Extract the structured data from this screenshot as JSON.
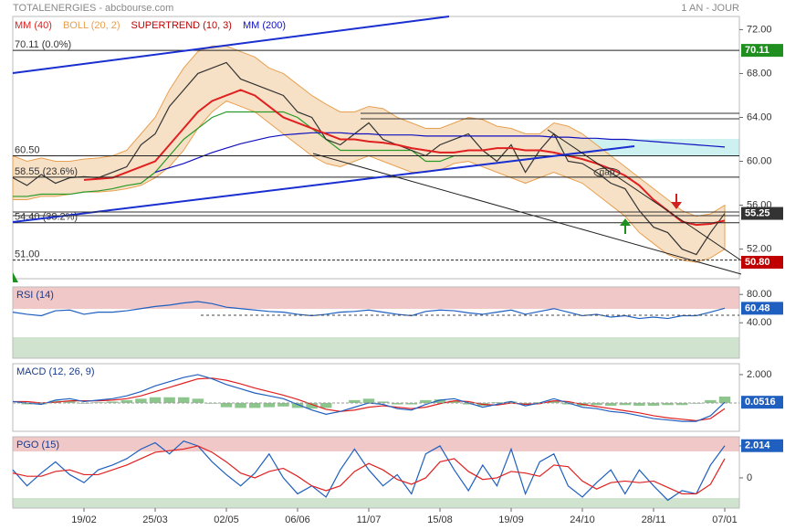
{
  "chart_data": [
    {
      "type": "line",
      "title": "TOTALENERGIES - abcbourse.com",
      "subtitle": "1 AN - JOUR",
      "ylim": [
        49.3,
        73.2
      ],
      "yticks": [
        {
          "value": 52,
          "label": "52.00"
        },
        {
          "value": 56,
          "label": "56.00"
        },
        {
          "value": 60,
          "label": "60.00"
        },
        {
          "value": 64,
          "label": "64.00"
        },
        {
          "value": 68,
          "label": "68.00"
        },
        {
          "value": 72,
          "label": "72.00"
        }
      ],
      "series": [
        {
          "name": "BOLL (20, 2)",
          "color": "#e8a050",
          "values": [
            60.5,
            60,
            60.3,
            60,
            60,
            60.2,
            60.3,
            60.5,
            61,
            62.5,
            64,
            66.5,
            68.5,
            70,
            70.5,
            70.5,
            70,
            69.5,
            68.5,
            68,
            67,
            66,
            65.2,
            64.5,
            64.5,
            65,
            64.8,
            64,
            63.5,
            63,
            63,
            63.5,
            64,
            63.8,
            63.2,
            63,
            62.5,
            62.5,
            63.5,
            63.2,
            62.5,
            61.5,
            60.5,
            59.5,
            58.5,
            57.5,
            56.5,
            55.5,
            55,
            55.2,
            56
          ],
          "lower": [
            56.5,
            56.5,
            56.8,
            56.8,
            57,
            57.2,
            57.2,
            57.3,
            57.5,
            57.8,
            58.5,
            59.5,
            61,
            63,
            64.5,
            65.5,
            65,
            64.5,
            63.5,
            62.5,
            61.5,
            60.5,
            59.8,
            59.5,
            60,
            60.5,
            60,
            59.5,
            59,
            59,
            59.2,
            59.8,
            60,
            59.5,
            59,
            58.5,
            58,
            58.5,
            59,
            58.5,
            58,
            57,
            56,
            55,
            53.5,
            52.5,
            51.5,
            51,
            50.8,
            51.2,
            52
          ]
        },
        {
          "name": "SUPERTREND (10, 3)",
          "color": "#c00000",
          "line_color": "#2a9a2a",
          "values": [
            56.8,
            56.8,
            57,
            57,
            57,
            57.2,
            57.3,
            57.5,
            57.8,
            58,
            59,
            60.5,
            62,
            63,
            64,
            64.5,
            64.5,
            64.5,
            64.5,
            64.5,
            64,
            63,
            62,
            61,
            61,
            61,
            61,
            61,
            61,
            60,
            60,
            60.5,
            60.5,
            60.5,
            60.5,
            60.5,
            60.5,
            60.5,
            null,
            null,
            null,
            null,
            null,
            null,
            null,
            null,
            null,
            null,
            null,
            null,
            null
          ]
        },
        {
          "color": "#333333",
          "values": [
            58.5,
            57.8,
            58.8,
            58,
            58.5,
            58.6,
            58.5,
            59,
            59.5,
            61.5,
            62.5,
            65,
            66.5,
            68,
            68.5,
            69,
            67.5,
            67,
            66.5,
            66,
            64.5,
            64,
            62,
            61.5,
            62.5,
            63.5,
            62,
            61.5,
            61,
            60.5,
            61.5,
            62,
            62.5,
            61,
            60,
            61.5,
            59,
            61,
            62.5,
            60,
            59.8,
            59,
            58,
            57.5,
            55.5,
            54,
            53.5,
            52,
            51.5,
            53.5,
            55.25
          ]
        },
        {
          "name": "MM (200)",
          "color": "#1010c0",
          "values": [
            null,
            null,
            null,
            null,
            null,
            null,
            null,
            null,
            null,
            null,
            59,
            59.4,
            59.8,
            60.3,
            60.8,
            61.2,
            61.6,
            61.9,
            62.2,
            62.4,
            62.5,
            62.6,
            62.6,
            62.6,
            62.5,
            62.5,
            62.4,
            62.4,
            62.4,
            62.3,
            62.3,
            62.3,
            62.3,
            62.3,
            62.3,
            62.3,
            62.3,
            62.3,
            62.2,
            62.2,
            62.1,
            62.1,
            62,
            62,
            61.9,
            61.8,
            61.7,
            61.6,
            61.5,
            61.4,
            61.3
          ]
        },
        {
          "name": "MM (40)",
          "color": "#e02020",
          "values": [
            null,
            null,
            null,
            null,
            null,
            58.3,
            58.4,
            58.5,
            59,
            59.5,
            60,
            61.5,
            63,
            64.5,
            65.5,
            66,
            66.5,
            66,
            65,
            64,
            63.5,
            63,
            62.5,
            62,
            62,
            61.8,
            61.7,
            61.5,
            61.2,
            61,
            60.8,
            60.8,
            61,
            61,
            61.2,
            61.2,
            61,
            61,
            60.8,
            60.5,
            60.2,
            59.8,
            59.3,
            58.7,
            57.8,
            56.5,
            55.5,
            54.5,
            54.2,
            54.3,
            54.6
          ]
        }
      ],
      "legend_order": [
        4,
        0,
        1,
        3
      ],
      "levels": [
        {
          "value": 70.11,
          "label": "70.11 (0.0%)"
        },
        {
          "value": 60.5,
          "label": "60.50"
        },
        {
          "value": 58.55,
          "label": "58.55 (23.6%)"
        },
        {
          "value": 54.4,
          "label": "54.40 (38.2%)"
        },
        {
          "value": 51.0,
          "label": "51.00"
        }
      ],
      "annotation": "gap",
      "tags": [
        {
          "value": 70.11,
          "label": "70.11",
          "color": "#1f8f1f"
        },
        {
          "value": 55.25,
          "label": "55.25",
          "color": "#333333"
        },
        {
          "value": 50.8,
          "label": "50.80",
          "color": "#c00000"
        }
      ]
    },
    {
      "type": "line",
      "title": "RSI (14)",
      "ylim": [
        -10,
        90.6
      ],
      "yticks": [
        {
          "value": 80,
          "label": "80.00"
        },
        {
          "value": 40,
          "label": "40.00"
        }
      ],
      "series": [
        {
          "color": "#1f5fbf",
          "values": [
            55,
            52,
            50,
            57,
            58,
            52,
            55,
            55,
            57,
            60,
            63,
            65,
            68,
            70,
            67,
            62,
            60,
            58,
            56,
            55,
            52,
            50,
            52,
            55,
            56,
            58,
            55,
            52,
            50,
            56,
            58,
            57,
            54,
            52,
            55,
            58,
            52,
            56,
            60,
            55,
            50,
            52,
            48,
            50,
            46,
            48,
            46,
            50,
            50,
            55,
            60.48
          ]
        }
      ],
      "tags": [
        {
          "value": 60.48,
          "label": "60.48",
          "color": "#1f5fbf"
        }
      ]
    },
    {
      "type": "line",
      "title": "MACD (12, 26, 9)",
      "ylim": [
        -2,
        2.77
      ],
      "yticks": [
        {
          "value": 2,
          "label": "2.000"
        }
      ],
      "series": [
        {
          "color": "#5cae5c",
          "style": "histogram",
          "values": [
            0,
            -0.1,
            -0.1,
            0.15,
            0.15,
            -0.05,
            0.05,
            0.1,
            0.2,
            0.3,
            0.4,
            0.4,
            0.4,
            0.3,
            -0.05,
            -0.3,
            -0.35,
            -0.35,
            -0.3,
            -0.25,
            -0.35,
            -0.4,
            -0.35,
            0,
            0.2,
            0.3,
            0.1,
            -0.1,
            -0.1,
            0.2,
            0.25,
            0.15,
            -0.1,
            -0.2,
            0.05,
            0.1,
            -0.1,
            0.05,
            0.15,
            -0.1,
            -0.2,
            -0.15,
            -0.2,
            -0.15,
            -0.2,
            -0.2,
            -0.15,
            -0.15,
            -0.05,
            0.2,
            0.45
          ]
        },
        {
          "color": "#e02020",
          "values": [
            0.1,
            0.1,
            0,
            0.05,
            0.15,
            0.15,
            0.15,
            0.2,
            0.3,
            0.5,
            0.8,
            1.1,
            1.4,
            1.7,
            1.75,
            1.6,
            1.35,
            1.05,
            0.8,
            0.55,
            0.25,
            -0.1,
            -0.45,
            -0.6,
            -0.5,
            -0.3,
            -0.2,
            -0.3,
            -0.4,
            -0.3,
            -0.05,
            0.15,
            0.1,
            -0.1,
            -0.15,
            0,
            -0.1,
            -0.05,
            0.15,
            0.1,
            -0.1,
            -0.25,
            -0.4,
            -0.55,
            -0.7,
            -0.9,
            -1.05,
            -1.15,
            -1.25,
            -1.1,
            -0.4
          ]
        },
        {
          "color": "#1f5fbf",
          "values": [
            0.1,
            0,
            -0.1,
            0.2,
            0.3,
            0.1,
            0.2,
            0.3,
            0.5,
            0.8,
            1.2,
            1.5,
            1.8,
            2,
            1.7,
            1.3,
            1,
            0.7,
            0.5,
            0.3,
            -0.1,
            -0.5,
            -0.8,
            -0.6,
            -0.3,
            0,
            -0.1,
            -0.4,
            -0.5,
            -0.1,
            0.2,
            0.3,
            0,
            -0.3,
            -0.1,
            0.1,
            -0.2,
            0,
            0.3,
            0,
            -0.3,
            -0.4,
            -0.6,
            -0.7,
            -0.9,
            -1.1,
            -1.2,
            -1.3,
            -1.3,
            -0.9,
            0.0516
          ]
        }
      ],
      "tags": [
        {
          "value": 0.0516,
          "label": "0.0516",
          "color": "#1f5fbf"
        }
      ]
    },
    {
      "type": "line",
      "title": "PGO (15)",
      "ylim": [
        -1.89,
        2.57
      ],
      "yticks": [
        {
          "value": 2,
          "label": "2.000"
        },
        0
      ],
      "series": [
        {
          "color": "#1f5fbf",
          "values": [
            0.5,
            -0.5,
            0.3,
            1,
            0.2,
            -0.3,
            0.5,
            0.8,
            1.2,
            1.8,
            2.2,
            1.5,
            2.3,
            2,
            1,
            0.2,
            -0.5,
            0.3,
            1.5,
            0,
            -1,
            -0.5,
            -1.2,
            0.5,
            1.8,
            0.5,
            -0.5,
            0.2,
            -1,
            1.5,
            2,
            0.5,
            -0.8,
            0.8,
            -0.5,
            1.8,
            -1,
            1,
            1.5,
            -0.5,
            -1.2,
            -0.3,
            0.5,
            -1,
            0.5,
            -0.5,
            -1.4,
            -0.8,
            -1,
            0.8,
            2.014
          ]
        },
        {
          "color": "#e02020",
          "values": [
            0.3,
            0.1,
            0.1,
            0.4,
            0.5,
            0.2,
            0.2,
            0.5,
            0.8,
            1.2,
            1.6,
            1.7,
            1.8,
            2,
            1.6,
            1,
            0.3,
            0,
            0.4,
            0.6,
            0.1,
            -0.5,
            -0.8,
            -0.5,
            0.4,
            0.9,
            0.5,
            -0.1,
            -0.4,
            0,
            1,
            1.2,
            0.4,
            -0.1,
            0,
            0.4,
            0.3,
            0.1,
            0.8,
            0.7,
            -0.2,
            -0.7,
            -0.3,
            -0.2,
            -0.3,
            -0.2,
            -0.6,
            -1,
            -1,
            -0.4,
            1.2
          ]
        }
      ],
      "tags": [
        {
          "value": 2.014,
          "label": "2.014",
          "color": "#1f5fbf"
        }
      ],
      "categories": [
        null,
        null,
        null,
        null,
        null,
        "19/02",
        null,
        null,
        null,
        null,
        "25/03",
        null,
        null,
        null,
        null,
        "02/05",
        null,
        null,
        null,
        null,
        "06/06",
        null,
        null,
        null,
        null,
        "11/07",
        null,
        null,
        null,
        null,
        "15/08",
        null,
        null,
        null,
        null,
        "19/09",
        null,
        null,
        null,
        null,
        "24/10",
        null,
        null,
        null,
        null,
        "28/11",
        null,
        null,
        null,
        null,
        "07/01"
      ]
    }
  ]
}
